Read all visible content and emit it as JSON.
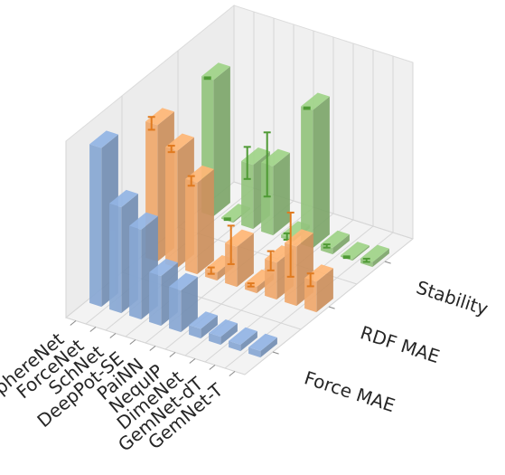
{
  "chart_data": {
    "type": "bar3d",
    "categories": [
      "SphereNet",
      "ForceNet",
      "SchNet",
      "DeepPot-SE",
      "PaiNN",
      "NequIP",
      "DimeNet",
      "GemNet-dT",
      "GemNet-T"
    ],
    "series": [
      {
        "name": "Force MAE",
        "color": "#88a8d4",
        "values": [
          0.99,
          0.66,
          0.56,
          0.31,
          0.26,
          0.06,
          0.05,
          0.04,
          0.04
        ]
      },
      {
        "name": "RDF MAE",
        "color": "#f0a96d",
        "values": [
          0.85,
          0.73,
          0.57,
          0.05,
          0.25,
          0.04,
          0.23,
          0.37,
          0.19
        ],
        "errors": [
          0.04,
          0.02,
          0.03,
          0.02,
          0.12,
          0.01,
          0.06,
          0.2,
          0.04
        ],
        "error_color": "#e07a1f"
      },
      {
        "name": "Stability",
        "color": "#94c47e",
        "values": [
          0.85,
          0.01,
          0.4,
          0.43,
          0.02,
          0.86,
          0.04,
          0.01,
          0.03
        ],
        "errors": [
          0.005,
          0.005,
          0.1,
          0.2,
          0.02,
          0.005,
          0.01,
          0.005,
          0.01
        ],
        "error_color": "#4f9a35"
      }
    ],
    "zlim": [
      0,
      1.1
    ]
  }
}
